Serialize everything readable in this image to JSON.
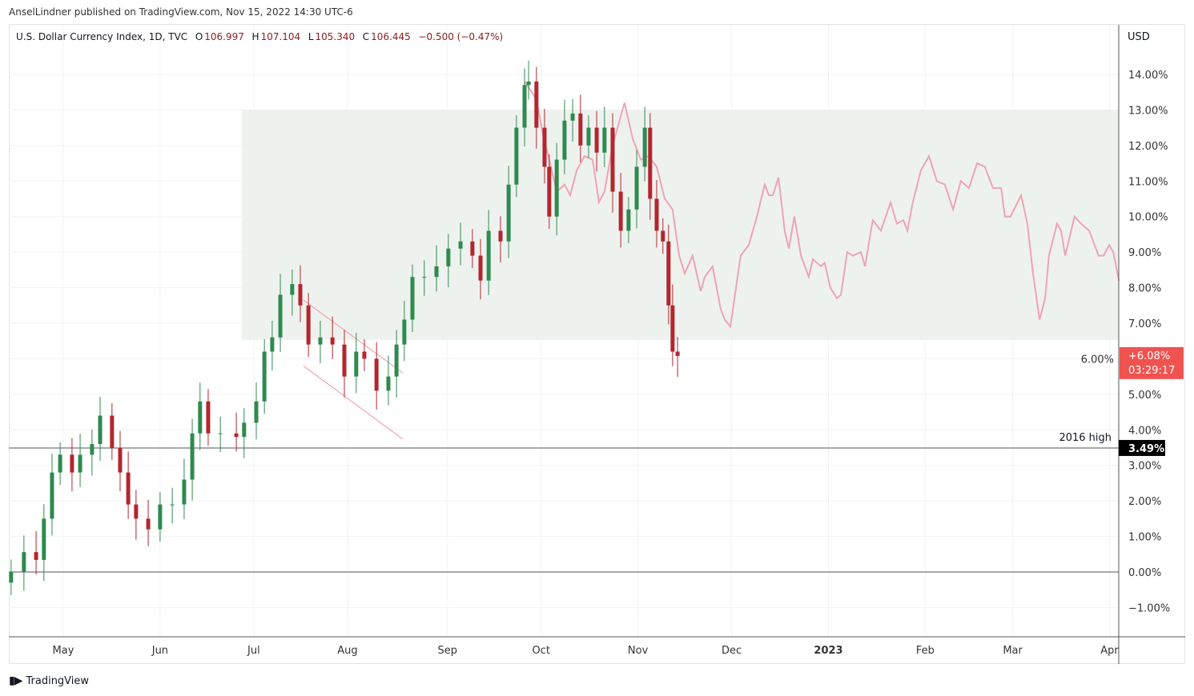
{
  "publisher_line": "AnselLindner published on TradingView.com, Nov 15, 2022 14:30 UTC-6",
  "legend": {
    "symbol": "U.S. Dollar Currency Index, 1D, TVC",
    "o_label": "O",
    "o": "106.997",
    "h_label": "H",
    "h": "107.104",
    "l_label": "L",
    "l": "105.340",
    "c_label": "C",
    "c": "106.445",
    "change": "−0.500 (−0.47%)"
  },
  "footer": {
    "brand": "TradingView",
    "logo": "17"
  },
  "colors": {
    "up": "#2f8a4f",
    "down": "#b3262e",
    "projection": "#f0a3b5",
    "zone": "#eef2ef",
    "price_tag": "#ef5350"
  },
  "chart_data": {
    "type": "candlestick",
    "x_unit": "days since 2022-05-01",
    "axis_currency": "USD",
    "ylim": [
      -1.3,
      15.1
    ],
    "y_ticks": [
      -1,
      0,
      1,
      2,
      3,
      4,
      5,
      6,
      7,
      8,
      9,
      10,
      11,
      12,
      13,
      14
    ],
    "y_tick_labels": [
      "−1.00%",
      "0.00%",
      "1.00%",
      "2.00%",
      "3.00%",
      "4.00%",
      "5.00%",
      "6.00%",
      "7.00%",
      "8.00%",
      "9.00%",
      "10.00%",
      "11.00%",
      "12.00%",
      "13.00%",
      "14.00%"
    ],
    "x_ticks": [
      {
        "label": "May",
        "day": 0
      },
      {
        "label": "Jun",
        "day": 31
      },
      {
        "label": "Jul",
        "day": 61
      },
      {
        "label": "Aug",
        "day": 91
      },
      {
        "label": "Sep",
        "day": 123
      },
      {
        "label": "Oct",
        "day": 153
      },
      {
        "label": "Nov",
        "day": 184
      },
      {
        "label": "Dec",
        "day": 214
      },
      {
        "label": "2023",
        "day": 245,
        "bold": true
      },
      {
        "label": "Feb",
        "day": 276
      },
      {
        "label": "Mar",
        "day": 304
      },
      {
        "label": "Apr",
        "day": 335
      }
    ],
    "candles": {
      "days": [
        -16.7,
        -12.6,
        -8.7,
        -6.2,
        -3.6,
        -1,
        2.8,
        5.4,
        9.2,
        11.8,
        15.6,
        18.2,
        20.8,
        23.3,
        27.2,
        31,
        34.9,
        38.7,
        41.3,
        43.8,
        46.4,
        50.3,
        55.4,
        57.9,
        61.8,
        64.4,
        66.9,
        69.5,
        73.3,
        75.9,
        78.5,
        82.3,
        86.2,
        90,
        93.8,
        96.4,
        100.3,
        104.1,
        106.7,
        109.2,
        111.8,
        115.6,
        119.5,
        123.3,
        127.2,
        131,
        133.6,
        136.2,
        140,
        142.6,
        145.1,
        147.7,
        149,
        151.5,
        154.1,
        155.6,
        158,
        160.5,
        163.1,
        165.6,
        168.2,
        170.8,
        173.3,
        175.9,
        178.5,
        181,
        183.6,
        186.2,
        187.9,
        190,
        192,
        193.8,
        195.1,
        196.7
      ],
      "close": [
        0,
        0.56,
        0.34,
        1.5,
        2.8,
        3.3,
        2.8,
        3.3,
        3.6,
        4.4,
        3.5,
        2.8,
        1.9,
        1.5,
        1.2,
        1.9,
        1.9,
        2.6,
        3.9,
        4.8,
        3.9,
        3.9,
        3.8,
        4.2,
        4.8,
        6.2,
        6.6,
        7.8,
        8.1,
        7.5,
        6.4,
        6.6,
        6.4,
        5.5,
        6.2,
        6.0,
        5.1,
        5.5,
        6.4,
        7.1,
        8.3,
        8.3,
        8.6,
        9.1,
        9.3,
        8.9,
        8.2,
        9.6,
        9.3,
        10.9,
        12.5,
        13.7,
        13.8,
        12.5,
        11.4,
        10.0,
        11.6,
        12.7,
        12.9,
        12.0,
        12.5,
        11.8,
        12.5,
        10.7,
        9.6,
        10.2,
        11.4,
        12.5,
        10.5,
        9.6,
        9.3,
        7.5,
        6.2,
        6.08
      ]
    },
    "projection_line": {
      "days": [
        147.7,
        151.5,
        153.6,
        155.6,
        158,
        160.5,
        162.3,
        164.4,
        166.9,
        169.5,
        171.5,
        173.3,
        175.9,
        179.7,
        182.3,
        184.9,
        187.4,
        190,
        192.6,
        195.1,
        197.2,
        199,
        201.5,
        204.1,
        205.4,
        207.9,
        210.5,
        211.8,
        213.6,
        216.9,
        219.5,
        222.1,
        224.6,
        225.9,
        227.2,
        229,
        231,
        232.3,
        234.1,
        236.2,
        238.7,
        240,
        242.6,
        243.8,
        245.6,
        247.7,
        249,
        251,
        252.8,
        255.4,
        256.7,
        259.2,
        261.8,
        264.9,
        266.9,
        269,
        270.3,
        272,
        274.6,
        277.2,
        279.7,
        282.3,
        284.9,
        287.4,
        290,
        292.6,
        295.1,
        297.7,
        300.3,
        301.5,
        303.3,
        306.7,
        308.7,
        310.5,
        312.6,
        314.4,
        315.6,
        318.2,
        319.5,
        320.8,
        323.8,
        325.9,
        328.5,
        331.5,
        333.1,
        334.9,
        336.2,
        338
      ],
      "values": [
        13.8,
        13.3,
        12.3,
        11.6,
        10.7,
        10.9,
        10.6,
        11.3,
        11.7,
        11.6,
        10.4,
        10.7,
        12.0,
        13.2,
        12.2,
        11.6,
        11.7,
        11.4,
        10.5,
        10.2,
        8.9,
        8.4,
        8.9,
        7.9,
        8.3,
        8.6,
        7.4,
        7.1,
        6.9,
        8.9,
        9.2,
        10.0,
        10.9,
        10.6,
        10.6,
        11.1,
        9.6,
        9.1,
        10.0,
        8.9,
        8.3,
        8.8,
        8.6,
        8.7,
        8.0,
        7.7,
        7.8,
        9.0,
        8.9,
        9.0,
        8.6,
        9.9,
        9.6,
        10.4,
        9.8,
        9.9,
        9.6,
        10.4,
        11.3,
        11.7,
        11.0,
        10.9,
        10.2,
        11.0,
        10.8,
        11.5,
        11.4,
        10.8,
        10.8,
        10.0,
        10.0,
        10.6,
        9.8,
        8.4,
        7.1,
        7.7,
        8.9,
        9.8,
        9.6,
        8.9,
        10.0,
        9.8,
        9.6,
        8.9,
        8.9,
        9.2,
        9.0,
        8.2
      ]
    },
    "zone": {
      "from_day": 57.2,
      "top": 13.0,
      "bottom": 6.53
    },
    "channel": {
      "upper": [
        [
          76.9,
          7.65
        ],
        [
          108.7,
          5.6
        ]
      ],
      "lower": [
        [
          76.9,
          5.8
        ],
        [
          108.7,
          3.74
        ]
      ]
    },
    "hline_2016": {
      "value": 3.49,
      "label": "2016 high",
      "tag": "3.49%"
    },
    "hline_zero": 0,
    "last_price_tag": {
      "value": 6.08,
      "label": "+6.08%",
      "countdown": "03:29:17"
    }
  }
}
